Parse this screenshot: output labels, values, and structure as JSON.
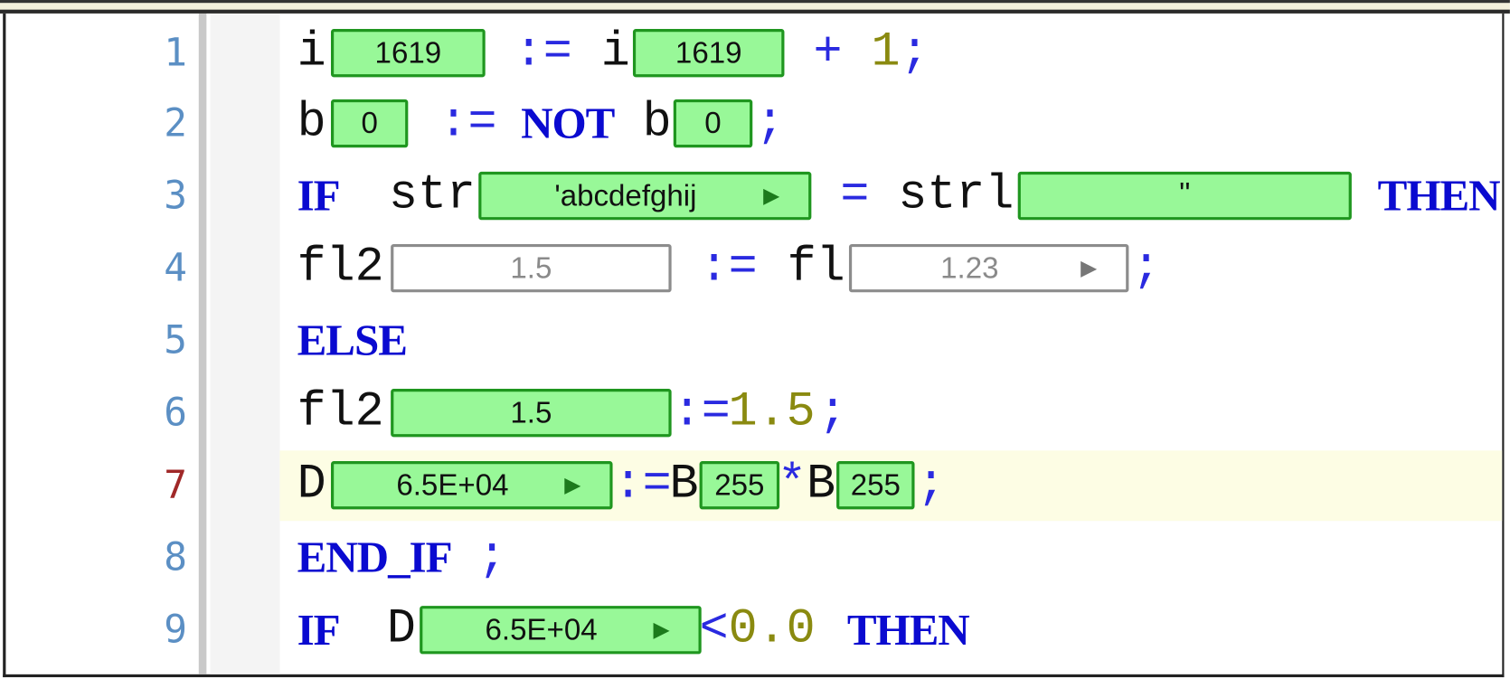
{
  "editor": {
    "lines": [
      {
        "num": "1",
        "t": [
          "i",
          ":=",
          "i",
          "+",
          "1",
          ";"
        ],
        "w": [
          "1619",
          "1619"
        ]
      },
      {
        "num": "2",
        "t": [
          "b",
          ":=",
          "NOT",
          "b",
          ";"
        ],
        "w": [
          "0",
          "0"
        ]
      },
      {
        "num": "3",
        "t": [
          "IF",
          "str",
          "=",
          "strl",
          "THEN"
        ],
        "w": [
          "'abcdefghij",
          "''"
        ]
      },
      {
        "num": "4",
        "t": [
          "fl2",
          ":=",
          "fl",
          ";"
        ],
        "w": [
          "1.5",
          "1.23"
        ]
      },
      {
        "num": "5",
        "t": [
          "ELSE"
        ]
      },
      {
        "num": "6",
        "t": [
          "fl2",
          ":=",
          "1.5",
          ";"
        ],
        "w": [
          "1.5"
        ]
      },
      {
        "num": "7",
        "t": [
          "D",
          ":=",
          "B",
          "*",
          "B",
          ";"
        ],
        "w": [
          "6.5E+04",
          "255",
          "255"
        ]
      },
      {
        "num": "8",
        "t": [
          "END_IF",
          ";"
        ]
      },
      {
        "num": "9",
        "t": [
          "IF",
          "D",
          "<",
          "0.0",
          "THEN"
        ],
        "w": [
          "6.5E+04"
        ]
      }
    ],
    "current_line": "7"
  },
  "colors": {
    "keyword": "#0a0ad0",
    "operator": "#2a2ae0",
    "number": "#8a8a10",
    "line_number": "#5b8fc4",
    "watch_fill": "#98f898",
    "watch_border": "#1f961f",
    "current_line_bg": "#fdfde4"
  },
  "icons": {
    "expand": "triangle-right-icon"
  }
}
